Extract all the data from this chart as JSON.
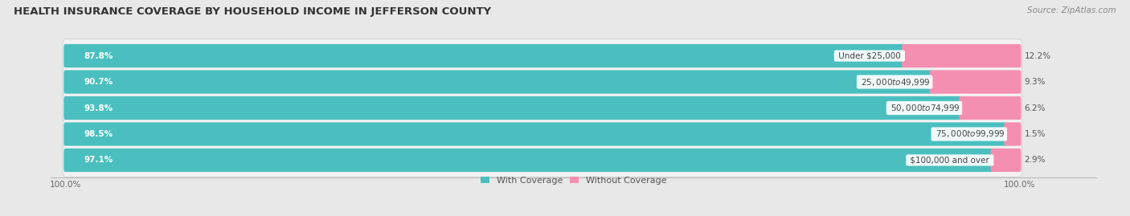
{
  "title": "HEALTH INSURANCE COVERAGE BY HOUSEHOLD INCOME IN JEFFERSON COUNTY",
  "source": "Source: ZipAtlas.com",
  "categories": [
    "Under $25,000",
    "$25,000 to $49,999",
    "$50,000 to $74,999",
    "$75,000 to $99,999",
    "$100,000 and over"
  ],
  "with_coverage": [
    87.8,
    90.7,
    93.8,
    98.5,
    97.1
  ],
  "without_coverage": [
    12.2,
    9.3,
    6.2,
    1.5,
    2.9
  ],
  "color_with": "#4bbfbf",
  "color_without": "#f48fb1",
  "label_with": "With Coverage",
  "label_without": "Without Coverage",
  "bg_color": "#e8e8e8",
  "bar_bg_color": "#f2f2f2",
  "title_fontsize": 9.5,
  "source_fontsize": 7.5,
  "bar_label_fontsize": 7.5,
  "category_fontsize": 7.5,
  "legend_fontsize": 8,
  "axis_label_fontsize": 7.5
}
